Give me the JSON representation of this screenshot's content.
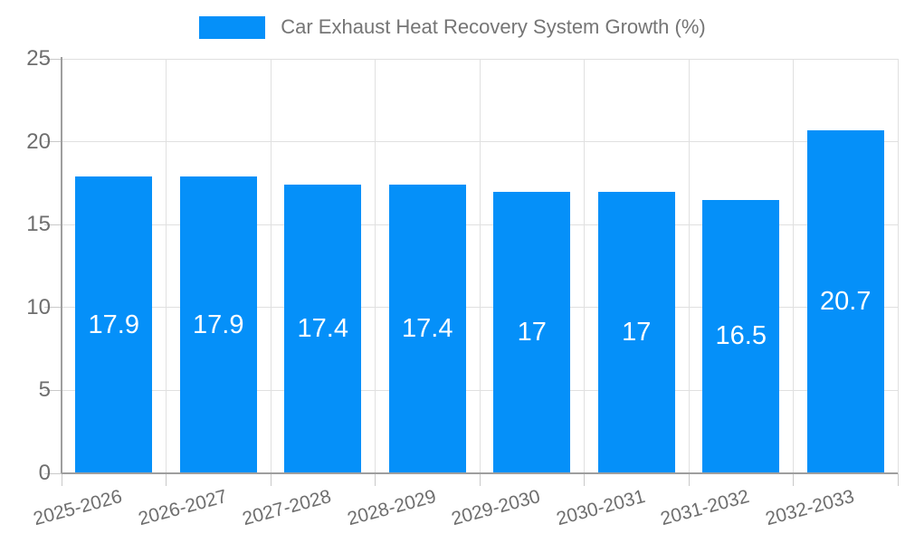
{
  "legend": {
    "label": "Car Exhaust Heat Recovery System Growth (%)"
  },
  "chart_data": {
    "type": "bar",
    "title": "Car Exhaust Heat Recovery System Growth (%)",
    "xlabel": "",
    "ylabel": "",
    "categories": [
      "2025-2026",
      "2026-2027",
      "2027-2028",
      "2028-2029",
      "2029-2030",
      "2030-2031",
      "2031-2032",
      "2032-2033"
    ],
    "values": [
      17.9,
      17.9,
      17.4,
      17.4,
      17,
      17,
      16.5,
      20.7
    ],
    "value_labels": [
      "17.9",
      "17.9",
      "17.4",
      "17.4",
      "17",
      "17",
      "16.5",
      "20.7"
    ],
    "ylim": [
      0,
      25
    ],
    "yticks": [
      0,
      5,
      10,
      15,
      20,
      25
    ],
    "grid": true,
    "legend_position": "top-center",
    "colors": {
      "bar": "#0590f9",
      "value_label": "#ffffff",
      "axis_text": "#6e6e6e",
      "legend_text": "#757575",
      "grid_line": "#e0e0e0",
      "axis_line": "#9e9e9e",
      "tick": "#c9c9c9",
      "background": "#ffffff"
    }
  }
}
